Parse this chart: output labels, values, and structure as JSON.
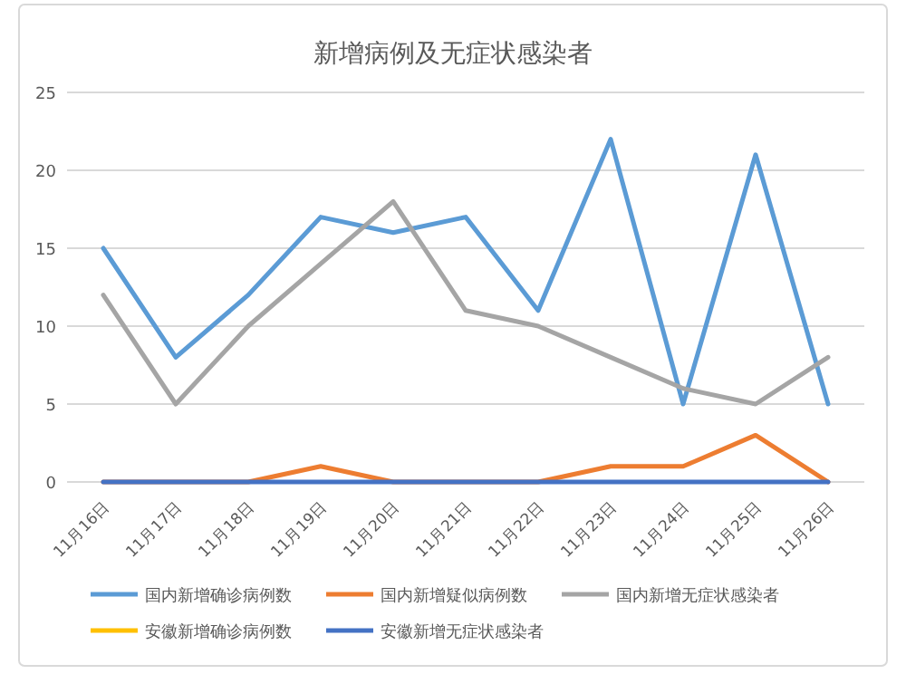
{
  "chart_data": {
    "type": "line",
    "title": "新增病例及无症状感染者",
    "categories": [
      "11月16日",
      "11月17日",
      "11月18日",
      "11月19日",
      "11月20日",
      "11月21日",
      "11月22日",
      "11月23日",
      "11月24日",
      "11月25日",
      "11月26日"
    ],
    "series": [
      {
        "name": "国内新增确诊病例数",
        "color": "#5b9bd5",
        "values": [
          15,
          8,
          12,
          17,
          16,
          17,
          11,
          22,
          5,
          21,
          5
        ]
      },
      {
        "name": "国内新增疑似病例数",
        "color": "#ed7d31",
        "values": [
          0,
          0,
          0,
          1,
          0,
          0,
          0,
          1,
          1,
          3,
          0
        ]
      },
      {
        "name": "国内新增无症状感染者",
        "color": "#a5a5a5",
        "values": [
          12,
          5,
          10,
          14,
          18,
          11,
          10,
          8,
          6,
          5,
          8
        ]
      },
      {
        "name": "安徽新增确诊病例数",
        "color": "#ffc000",
        "values": [
          null,
          null,
          null,
          null,
          null,
          null,
          null,
          null,
          null,
          null,
          null
        ]
      },
      {
        "name": "安徽新增无症状感染者",
        "color": "#4472c4",
        "values": [
          0,
          0,
          0,
          0,
          0,
          0,
          0,
          0,
          0,
          0,
          0
        ]
      }
    ],
    "ylim": [
      0,
      25
    ],
    "yticks": [
      0,
      5,
      10,
      15,
      20,
      25
    ],
    "grid": "y",
    "legend": "bottom",
    "marker": "none",
    "line_style": "solid"
  }
}
